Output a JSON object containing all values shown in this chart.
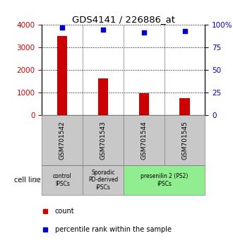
{
  "title": "GDS4141 / 226886_at",
  "categories": [
    "GSM701542",
    "GSM701543",
    "GSM701544",
    "GSM701545"
  ],
  "counts": [
    3520,
    1620,
    980,
    760
  ],
  "percentiles": [
    97,
    95,
    92,
    93
  ],
  "ylim_left": [
    0,
    4000
  ],
  "ylim_right": [
    0,
    100
  ],
  "yticks_left": [
    0,
    1000,
    2000,
    3000,
    4000
  ],
  "yticks_right": [
    0,
    25,
    50,
    75,
    100
  ],
  "ytick_labels_right": [
    "0",
    "25",
    "50",
    "75",
    "100%"
  ],
  "bar_color": "#cc0000",
  "dot_color": "#0000cc",
  "cell_line_groups": [
    {
      "label": "control\nIPSCs",
      "color": "#c8c8c8",
      "start": 0,
      "end": 1
    },
    {
      "label": "Sporadic\nPD-derived\niPSCs",
      "color": "#c8c8c8",
      "start": 1,
      "end": 2
    },
    {
      "label": "presenilin 2 (PS2)\niPSCs",
      "color": "#90ee90",
      "start": 2,
      "end": 4
    }
  ],
  "legend_count_label": "count",
  "legend_percentile_label": "percentile rank within the sample",
  "cell_line_label": "cell line",
  "bar_width": 0.25,
  "bg_color": "#ffffff",
  "gsm_box_color": "#c8c8c8"
}
